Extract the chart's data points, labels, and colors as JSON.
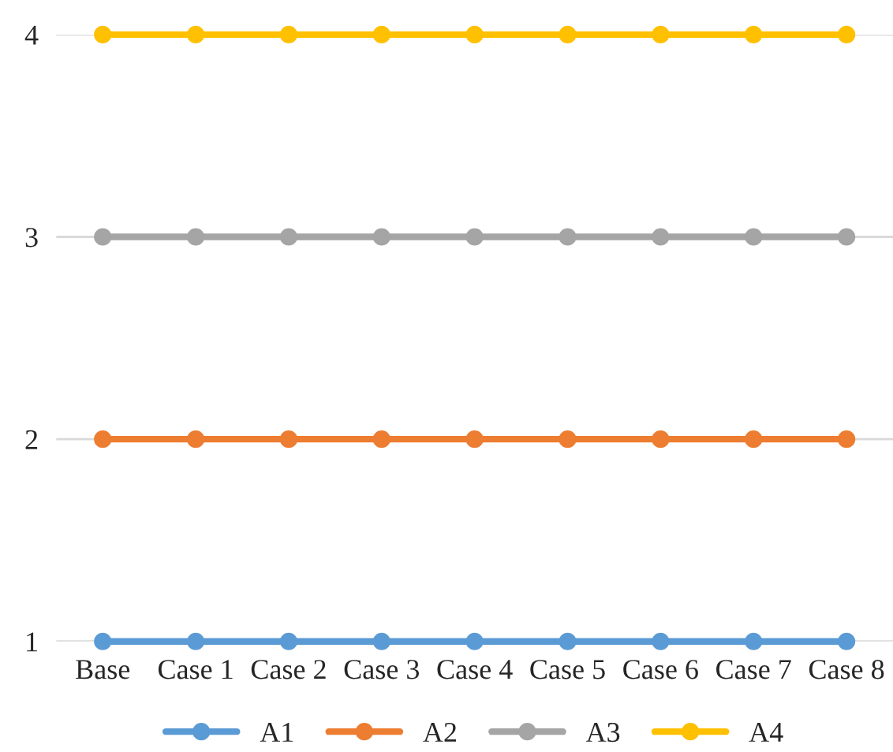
{
  "chart_data": {
    "type": "line",
    "categories": [
      "Base",
      "Case 1",
      "Case 2",
      "Case 3",
      "Case 4",
      "Case 5",
      "Case 6",
      "Case 7",
      "Case 8"
    ],
    "series": [
      {
        "name": "A1",
        "color": "#5b9bd5",
        "values": [
          1,
          1,
          1,
          1,
          1,
          1,
          1,
          1,
          1
        ]
      },
      {
        "name": "A2",
        "color": "#ed7d31",
        "values": [
          2,
          2,
          2,
          2,
          2,
          2,
          2,
          2,
          2
        ]
      },
      {
        "name": "A3",
        "color": "#a5a5a5",
        "values": [
          3,
          3,
          3,
          3,
          3,
          3,
          3,
          3,
          3
        ]
      },
      {
        "name": "A4",
        "color": "#ffc000",
        "values": [
          4,
          4,
          4,
          4,
          4,
          4,
          4,
          4,
          4
        ]
      }
    ],
    "ylim": [
      1,
      4
    ],
    "yticks": [
      1,
      2,
      3,
      4
    ],
    "grid": "y",
    "legend": "bottom",
    "marker": "circle",
    "line_style": "solid"
  }
}
